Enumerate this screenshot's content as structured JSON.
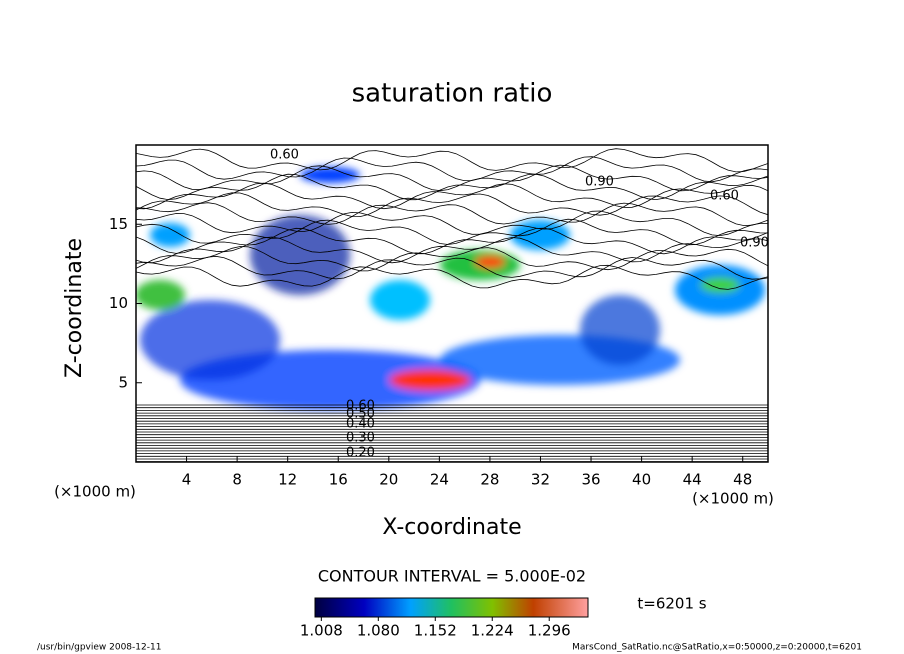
{
  "chart_data": {
    "type": "contour",
    "title": "saturation ratio",
    "xlabel": "X-coordinate",
    "ylabel": "Z-coordinate",
    "x_unit": "(×1000 m)",
    "y_unit": "(×1000 m)",
    "xlim": [
      0,
      50
    ],
    "xticks": [
      4,
      8,
      12,
      16,
      20,
      24,
      28,
      32,
      36,
      40,
      44,
      48
    ],
    "ylim": [
      0,
      20
    ],
    "yticks": [
      5,
      10,
      15
    ],
    "contour_labels": [
      "0.60",
      "0.60",
      "0.90",
      "0.90",
      "0.20",
      "0.30",
      "0.40",
      "0.50",
      "0.60"
    ],
    "contour_interval": "CONTOUR INTERVAL = 5.000E-02",
    "colorbar": {
      "lim": [
        1.0,
        1.345
      ],
      "ticks": [
        {
          "value": 1.008,
          "label": "1.008"
        },
        {
          "value": 1.08,
          "label": "1.080"
        },
        {
          "value": 1.152,
          "label": "1.152"
        },
        {
          "value": 1.224,
          "label": "1.224"
        },
        {
          "value": 1.296,
          "label": "1.296"
        }
      ]
    },
    "time_label": "t=6201 s",
    "footer_left": "/usr/bin/gpview   2008-12-11",
    "footer_right": "MarsCond_SatRatio.nc@SatRatio,x=0:50000,z=0:20000,t=6201"
  }
}
